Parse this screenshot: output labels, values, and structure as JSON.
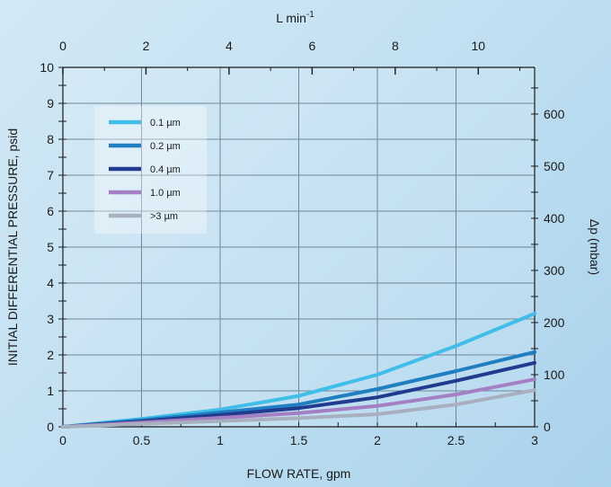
{
  "chart_data": {
    "type": "line",
    "xlabel": "FLOW RATE, gpm",
    "ylabel": "INITIAL DIFFERENTIAL PRESSURE, psid",
    "x2label": "L min",
    "x2label_sup": "-1",
    "y2label": "Δp (mbar)",
    "xlim": [
      0,
      3
    ],
    "ylim": [
      0,
      10
    ],
    "x_ticks": [
      "0",
      "0.5",
      "1",
      "1.5",
      "2",
      "2.5",
      "3"
    ],
    "y_ticks": [
      "0",
      "1",
      "2",
      "3",
      "4",
      "5",
      "6",
      "7",
      "8",
      "9",
      "10"
    ],
    "x2lim": [
      0,
      11.356
    ],
    "x2_ticks": [
      "0",
      "2",
      "4",
      "6",
      "8",
      "10"
    ],
    "y2lim": [
      0,
      689.5
    ],
    "y2_ticks": [
      "0",
      "100",
      "200",
      "300",
      "400",
      "500",
      "600"
    ],
    "grid": true,
    "legend_position": "upper-left",
    "x": [
      0,
      0.5,
      1,
      1.5,
      2,
      2.5,
      3
    ],
    "series": [
      {
        "name": "0.1 µm",
        "color": "#40bde8",
        "values": [
          0,
          0.22,
          0.48,
          0.86,
          1.45,
          2.25,
          3.15
        ]
      },
      {
        "name": "0.2 µm",
        "color": "#1f7fc0",
        "values": [
          0,
          0.18,
          0.4,
          0.62,
          1.05,
          1.55,
          2.08
        ]
      },
      {
        "name": "0.4 µm",
        "color": "#213b8f",
        "values": [
          0,
          0.15,
          0.33,
          0.52,
          0.82,
          1.28,
          1.78
        ]
      },
      {
        "name": "1.0 µm",
        "color": "#a47fc4",
        "values": [
          0,
          0.12,
          0.25,
          0.38,
          0.58,
          0.9,
          1.32
        ]
      },
      {
        "name": ">3 µm",
        "color": "#a8b0bf",
        "values": [
          0,
          0.08,
          0.16,
          0.24,
          0.35,
          0.62,
          1.02
        ]
      }
    ]
  }
}
